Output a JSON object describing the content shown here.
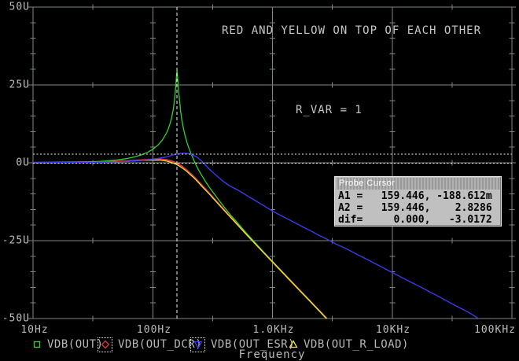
{
  "annotations": {
    "note": "RED AND YELLOW ON TOP OF EACH OTHER",
    "param": "R_VAR = 1"
  },
  "axes": {
    "y_labels": [
      "50U",
      "25U",
      "0U",
      "-25U",
      "-50U"
    ],
    "x_labels": [
      "10Hz",
      "100Hz",
      "1.0KHz",
      "10KHz",
      "100KHz"
    ],
    "x_title": "Frequency"
  },
  "cursor_box": {
    "title": "Probe Cursor",
    "rows": [
      "A1 =   159.446, -188.612m",
      "A2 =   159.446,    2.8286",
      "dif=     0.000,   -3.0172"
    ]
  },
  "legend": {
    "selected": [
      false,
      true,
      true,
      false
    ]
  },
  "colors": {
    "grid": "#7c8a7c",
    "cursor_line": "#f0f0f0",
    "background": "#000000"
  },
  "chart_data": {
    "type": "line",
    "title": "",
    "x_axis": {
      "scale": "log",
      "label": "Frequency",
      "range_hz": [
        10,
        100000
      ],
      "tick_labels": [
        "10Hz",
        "100Hz",
        "1.0KHz",
        "10KHz",
        "100KHz"
      ]
    },
    "y_axis": {
      "range": [
        -50,
        50
      ],
      "tick_labels": [
        "50U",
        "25U",
        "0U",
        "-25U",
        "-50U"
      ],
      "gridlines_every": 25
    },
    "cursors": {
      "a1": [
        159.446,
        -0.188612
      ],
      "a2": [
        159.446,
        2.8286
      ],
      "dif": [
        0.0,
        -3.0172
      ]
    },
    "series": [
      {
        "name": "VDB(OUT)",
        "color": "#2fd32f",
        "marker": "square",
        "width": 1.3,
        "points": [
          [
            10,
            0.03
          ],
          [
            20,
            0.14
          ],
          [
            30,
            0.31
          ],
          [
            40,
            0.56
          ],
          [
            50,
            0.9
          ],
          [
            60,
            1.33
          ],
          [
            70,
            1.86
          ],
          [
            80,
            2.52
          ],
          [
            90,
            3.33
          ],
          [
            100,
            4.34
          ],
          [
            110,
            5.61
          ],
          [
            120,
            7.26
          ],
          [
            130,
            9.49
          ],
          [
            135,
            10.96
          ],
          [
            140,
            12.8
          ],
          [
            144,
            14.6
          ],
          [
            148,
            17.0
          ],
          [
            151,
            19.3
          ],
          [
            154,
            22.5
          ],
          [
            156,
            25.1
          ],
          [
            158,
            28.3
          ],
          [
            159.446,
            29.7
          ],
          [
            161,
            27.9
          ],
          [
            163,
            24.7
          ],
          [
            165,
            22.3
          ],
          [
            168,
            19.5
          ],
          [
            171,
            16.5
          ],
          [
            175,
            13.7
          ],
          [
            180,
            11.2
          ],
          [
            185,
            9.2
          ],
          [
            193,
            6.6
          ],
          [
            200,
            4.8
          ],
          [
            210,
            2.7
          ],
          [
            220,
            0.9
          ],
          [
            230,
            -0.7
          ],
          [
            240,
            -2.1
          ],
          [
            260,
            -4.4
          ],
          [
            280,
            -6.4
          ],
          [
            300,
            -8.1
          ],
          [
            350,
            -11.6
          ],
          [
            400,
            -14.5
          ],
          [
            450,
            -16.9
          ],
          [
            500,
            -18.9
          ],
          [
            600,
            -22.4
          ],
          [
            700,
            -25.2
          ],
          [
            800,
            -27.7
          ],
          [
            1000,
            -31.7
          ],
          [
            1300,
            -36.3
          ],
          [
            1600,
            -40.0
          ],
          [
            2000,
            -43.9
          ],
          [
            2500,
            -47.8
          ],
          [
            3000,
            -51.0
          ]
        ]
      },
      {
        "name": "VDB(OUT_DCR)",
        "color": "#dd3b3b",
        "marker": "diamond",
        "width": 2.2,
        "points": [
          [
            10,
            0.02
          ],
          [
            40,
            0.25
          ],
          [
            60,
            0.53
          ],
          [
            80,
            0.85
          ],
          [
            100,
            1.09
          ],
          [
            115,
            1.12
          ],
          [
            130,
            0.94
          ],
          [
            145,
            0.5
          ],
          [
            159.446,
            -0.19
          ],
          [
            175,
            -1.13
          ],
          [
            190,
            -2.19
          ],
          [
            210,
            -3.7
          ],
          [
            230,
            -5.23
          ],
          [
            260,
            -7.42
          ],
          [
            300,
            -10.06
          ],
          [
            350,
            -12.92
          ],
          [
            400,
            -15.39
          ],
          [
            500,
            -19.46
          ],
          [
            600,
            -22.74
          ],
          [
            700,
            -25.49
          ],
          [
            800,
            -27.86
          ],
          [
            1000,
            -31.8
          ],
          [
            1300,
            -36.39
          ],
          [
            1600,
            -40.02
          ],
          [
            2000,
            -43.9
          ],
          [
            2500,
            -47.8
          ],
          [
            2900,
            -50.4
          ],
          [
            3100,
            -51.3
          ]
        ]
      },
      {
        "name": "VDB(OUT_ESR)",
        "color": "#3a3ae8",
        "marker": "triangle-down",
        "width": 1.4,
        "points": [
          [
            10,
            0.05
          ],
          [
            30,
            0.12
          ],
          [
            50,
            0.3
          ],
          [
            70,
            0.6
          ],
          [
            90,
            0.95
          ],
          [
            110,
            1.4
          ],
          [
            130,
            1.9
          ],
          [
            145,
            2.4
          ],
          [
            159.446,
            2.83
          ],
          [
            170,
            3.0
          ],
          [
            182,
            3.1
          ],
          [
            196,
            3.0
          ],
          [
            210,
            2.7
          ],
          [
            225,
            2.2
          ],
          [
            238,
            1.6
          ],
          [
            252,
            0.8
          ],
          [
            265,
            0.0
          ],
          [
            280,
            -1.0
          ],
          [
            300,
            -2.2
          ],
          [
            325,
            -3.4
          ],
          [
            355,
            -4.7
          ],
          [
            390,
            -6.0
          ],
          [
            430,
            -7.2
          ],
          [
            465,
            -7.9
          ],
          [
            500,
            -8.5
          ],
          [
            560,
            -9.6
          ],
          [
            630,
            -10.8
          ],
          [
            710,
            -12.0
          ],
          [
            800,
            -13.2
          ],
          [
            900,
            -14.4
          ],
          [
            1000,
            -15.5
          ],
          [
            1200,
            -17.1
          ],
          [
            1400,
            -18.4
          ],
          [
            1700,
            -20.1
          ],
          [
            2000,
            -21.5
          ],
          [
            2400,
            -23.1
          ],
          [
            2900,
            -24.7
          ],
          [
            3400,
            -26.1
          ],
          [
            4000,
            -27.3
          ],
          [
            4800,
            -28.9
          ],
          [
            5800,
            -30.5
          ],
          [
            7000,
            -32.1
          ],
          [
            8400,
            -33.7
          ],
          [
            10000,
            -35.2
          ],
          [
            12000,
            -36.8
          ],
          [
            14500,
            -38.4
          ],
          [
            17500,
            -40.0
          ],
          [
            21000,
            -41.6
          ],
          [
            25000,
            -43.1
          ],
          [
            30000,
            -44.8
          ],
          [
            36000,
            -46.4
          ],
          [
            43000,
            -47.9
          ],
          [
            52000,
            -49.9
          ],
          [
            58000,
            -51.0
          ]
        ]
      },
      {
        "name": "VDB(OUT_R_LOAD)",
        "color": "#e8e83a",
        "marker": "triangle-up",
        "width": 1.2,
        "points": [
          [
            10,
            0.02
          ],
          [
            40,
            0.22
          ],
          [
            60,
            0.48
          ],
          [
            80,
            0.75
          ],
          [
            100,
            0.85
          ],
          [
            115,
            0.88
          ],
          [
            130,
            0.55
          ],
          [
            145,
            0.05
          ],
          [
            159.446,
            -0.63
          ],
          [
            175,
            -1.6
          ],
          [
            190,
            -2.6
          ],
          [
            210,
            -4.1
          ],
          [
            230,
            -5.5
          ],
          [
            260,
            -7.75
          ],
          [
            300,
            -10.23
          ],
          [
            350,
            -13.05
          ],
          [
            400,
            -15.5
          ],
          [
            500,
            -19.5
          ],
          [
            600,
            -22.8
          ],
          [
            700,
            -25.55
          ],
          [
            800,
            -27.9
          ],
          [
            1000,
            -31.8
          ],
          [
            1300,
            -36.4
          ],
          [
            1600,
            -40.05
          ],
          [
            2000,
            -43.92
          ],
          [
            2500,
            -47.82
          ],
          [
            2900,
            -50.42
          ],
          [
            3100,
            -51.3
          ]
        ]
      }
    ]
  }
}
